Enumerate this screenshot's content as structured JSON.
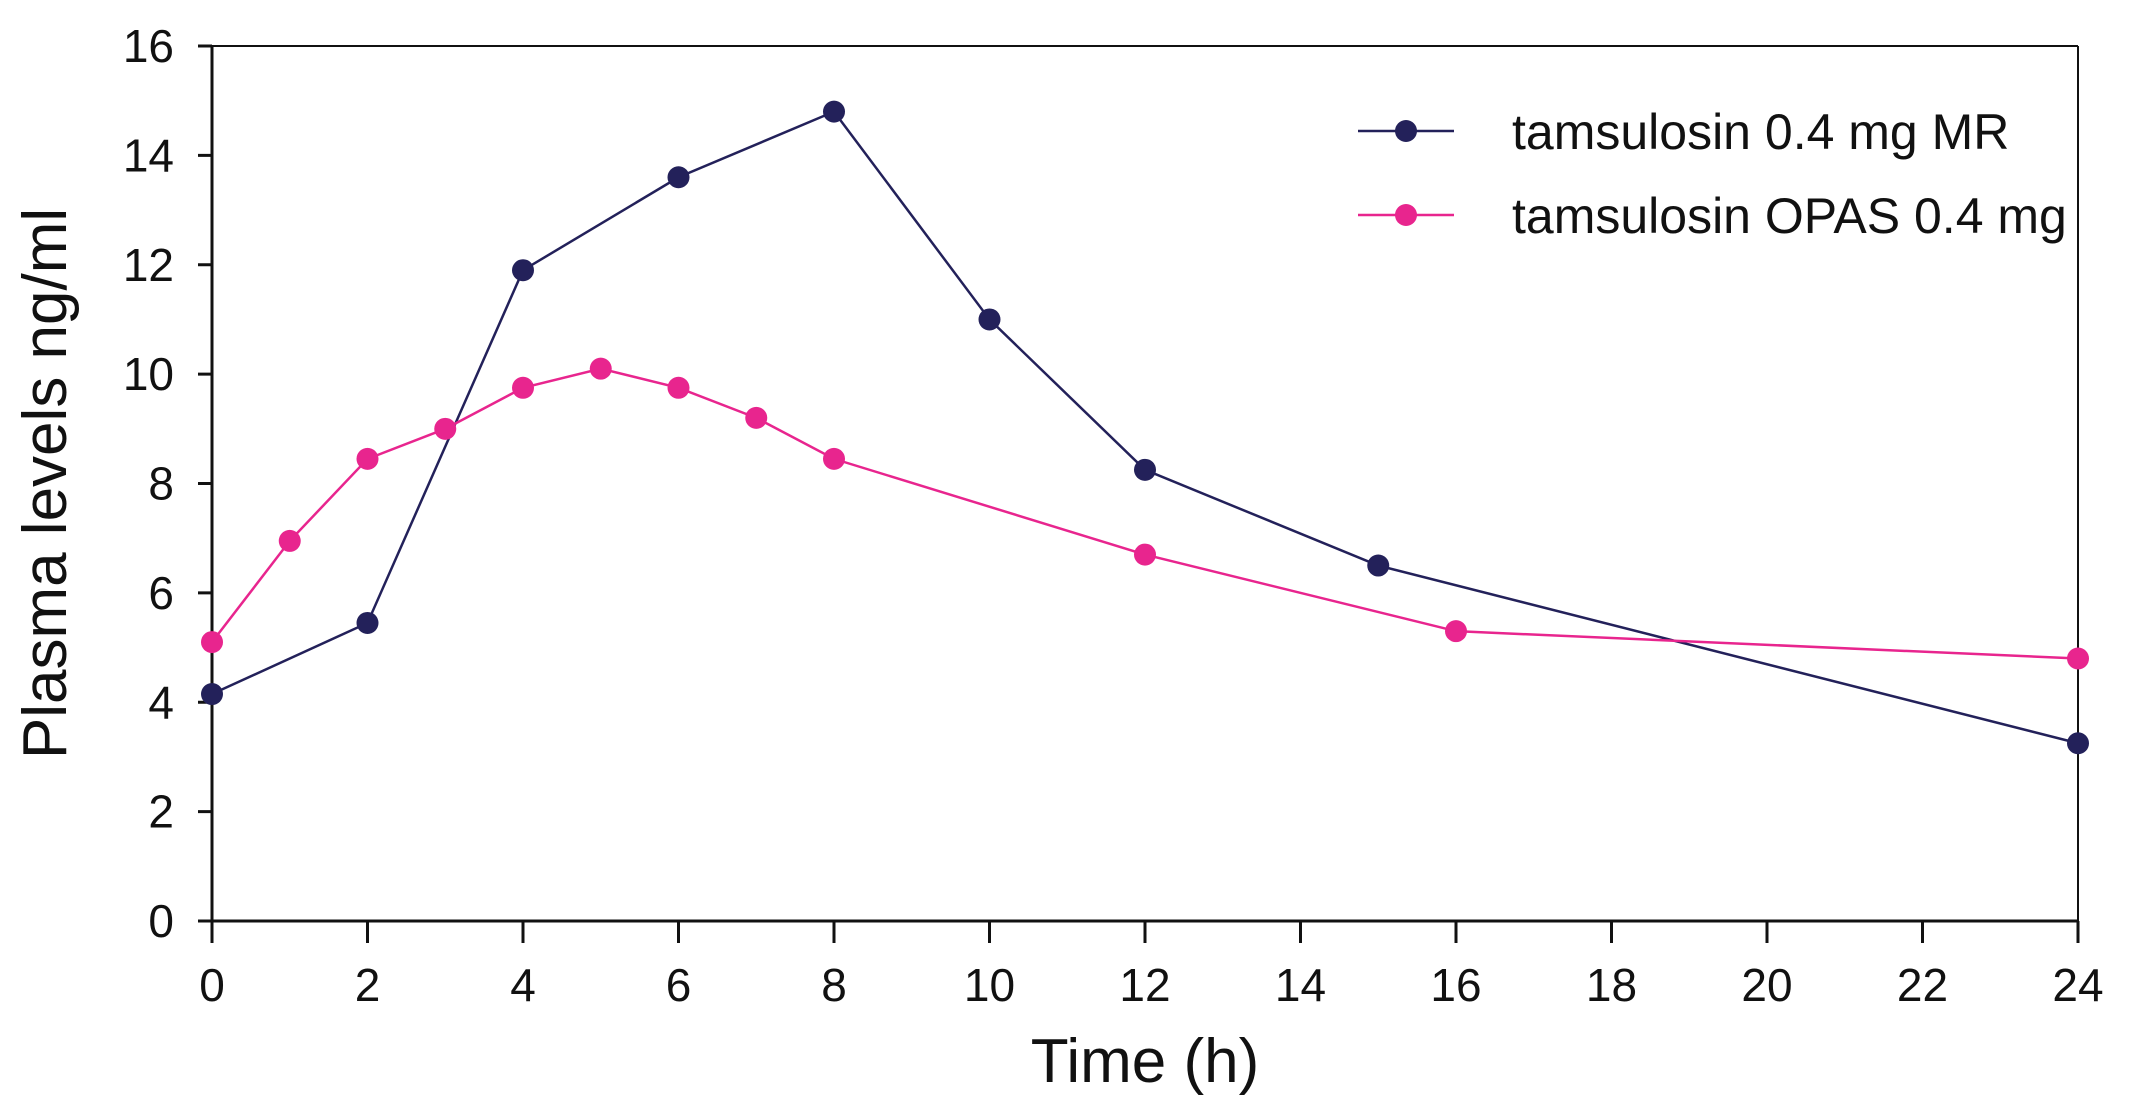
{
  "chart_data": {
    "type": "line",
    "title": "",
    "xlabel": "Time (h)",
    "ylabel": "Plasma levels ng/ml",
    "xlim": [
      0,
      24
    ],
    "ylim": [
      0,
      16
    ],
    "x_ticks": [
      0,
      2,
      4,
      6,
      8,
      10,
      12,
      14,
      16,
      18,
      20,
      22,
      24
    ],
    "y_ticks": [
      0,
      2,
      4,
      6,
      8,
      10,
      12,
      14,
      16
    ],
    "grid": false,
    "legend_position": "top-right",
    "series": [
      {
        "name": "tamsulosin 0.4 mg MR",
        "color": "#23215a",
        "x": [
          0,
          2,
          4,
          6,
          8,
          10,
          12,
          15,
          24
        ],
        "y": [
          4.15,
          5.45,
          11.9,
          13.6,
          14.8,
          11.0,
          8.25,
          6.5,
          3.25
        ]
      },
      {
        "name": "tamsulosin OPAS 0.4 mg",
        "color": "#e8258e",
        "x": [
          0,
          1,
          2,
          3,
          4,
          5,
          6,
          7,
          8,
          12,
          16,
          24
        ],
        "y": [
          5.1,
          6.95,
          8.45,
          9.0,
          9.75,
          10.1,
          9.75,
          9.2,
          8.45,
          6.7,
          5.3,
          4.8
        ]
      }
    ]
  }
}
